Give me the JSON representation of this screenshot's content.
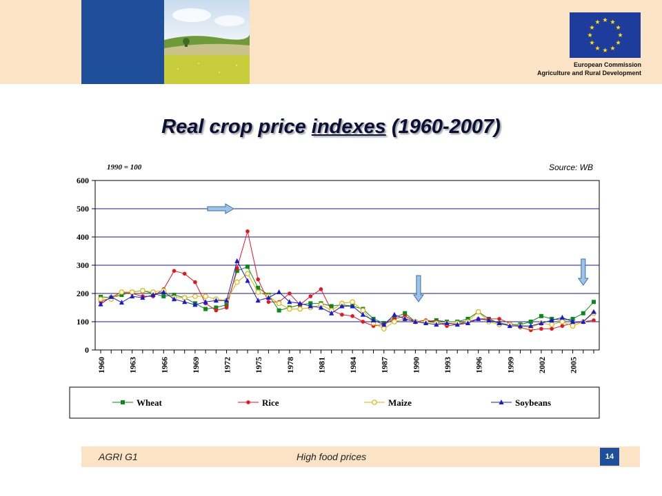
{
  "header": {
    "org_line1": "European Commission",
    "org_line2": "Agriculture and Rural Development",
    "eu_blue": "#1d3c9c",
    "brand_blue": "#1f4f9a",
    "band_color": "#fbe3c6"
  },
  "slide": {
    "title_pre": "Real crop price ",
    "title_ul": "indexes",
    "title_post": " (1960-2007)"
  },
  "footer": {
    "left": "AGRI G1",
    "center": "High food prices",
    "page": "14"
  },
  "chart_data": {
    "type": "line",
    "title": "",
    "note": "1990 = 100",
    "source": "Source: WB",
    "xlabel": "",
    "ylabel": "",
    "ylim": [
      0,
      600
    ],
    "yticks": [
      0,
      100,
      200,
      300,
      400,
      500,
      600
    ],
    "xticks": [
      1960,
      1963,
      1966,
      1969,
      1972,
      1975,
      1978,
      1981,
      1984,
      1987,
      1990,
      1993,
      1996,
      1999,
      2002,
      2005
    ],
    "x": [
      1960,
      1961,
      1962,
      1963,
      1964,
      1965,
      1966,
      1967,
      1968,
      1969,
      1970,
      1971,
      1972,
      1973,
      1974,
      1975,
      1976,
      1977,
      1978,
      1979,
      1980,
      1981,
      1982,
      1983,
      1984,
      1985,
      1986,
      1987,
      1988,
      1989,
      1990,
      1991,
      1992,
      1993,
      1994,
      1995,
      1996,
      1997,
      1998,
      1999,
      2000,
      2001,
      2002,
      2003,
      2004,
      2005,
      2006,
      2007
    ],
    "grid": true,
    "legend_position": "bottom",
    "arrow_markers": [
      1971.5,
      1990.3,
      2006.0
    ],
    "series": [
      {
        "name": "Wheat",
        "color": "#0a8a1a",
        "marker": "square",
        "values": [
          188,
          185,
          195,
          205,
          210,
          200,
          190,
          195,
          185,
          165,
          145,
          150,
          160,
          280,
          295,
          220,
          195,
          140,
          150,
          160,
          165,
          165,
          155,
          160,
          155,
          145,
          110,
          95,
          115,
          130,
          100,
          100,
          105,
          100,
          100,
          110,
          135,
          110,
          95,
          90,
          90,
          100,
          120,
          110,
          105,
          110,
          130,
          170
        ]
      },
      {
        "name": "Rice",
        "color": "#e8141e",
        "marker": "circle",
        "values": [
          170,
          185,
          205,
          200,
          190,
          190,
          215,
          280,
          270,
          240,
          165,
          140,
          150,
          290,
          420,
          250,
          170,
          170,
          200,
          160,
          190,
          215,
          140,
          125,
          120,
          100,
          85,
          90,
          110,
          120,
          100,
          105,
          100,
          85,
          90,
          100,
          110,
          110,
          110,
          95,
          80,
          70,
          75,
          75,
          85,
          95,
          100,
          105
        ]
      },
      {
        "name": "Maize",
        "color": "#d9b400",
        "marker": "open-circle",
        "values": [
          180,
          180,
          205,
          205,
          210,
          205,
          210,
          185,
          185,
          190,
          190,
          180,
          175,
          240,
          270,
          205,
          190,
          165,
          145,
          145,
          150,
          160,
          140,
          165,
          170,
          140,
          95,
          75,
          100,
          110,
          100,
          100,
          95,
          95,
          95,
          100,
          135,
          100,
          90,
          90,
          85,
          80,
          95,
          90,
          100,
          85,
          100,
          130
        ]
      },
      {
        "name": "Soybeans",
        "color": "#1a1ad6",
        "marker": "triangle",
        "values": [
          162,
          188,
          168,
          190,
          185,
          195,
          205,
          180,
          170,
          160,
          170,
          175,
          175,
          315,
          245,
          175,
          185,
          205,
          170,
          165,
          155,
          150,
          130,
          155,
          155,
          125,
          105,
          90,
          125,
          110,
          100,
          95,
          90,
          95,
          90,
          95,
          110,
          105,
          95,
          85,
          85,
          85,
          95,
          105,
          115,
          100,
          100,
          135
        ]
      }
    ]
  }
}
